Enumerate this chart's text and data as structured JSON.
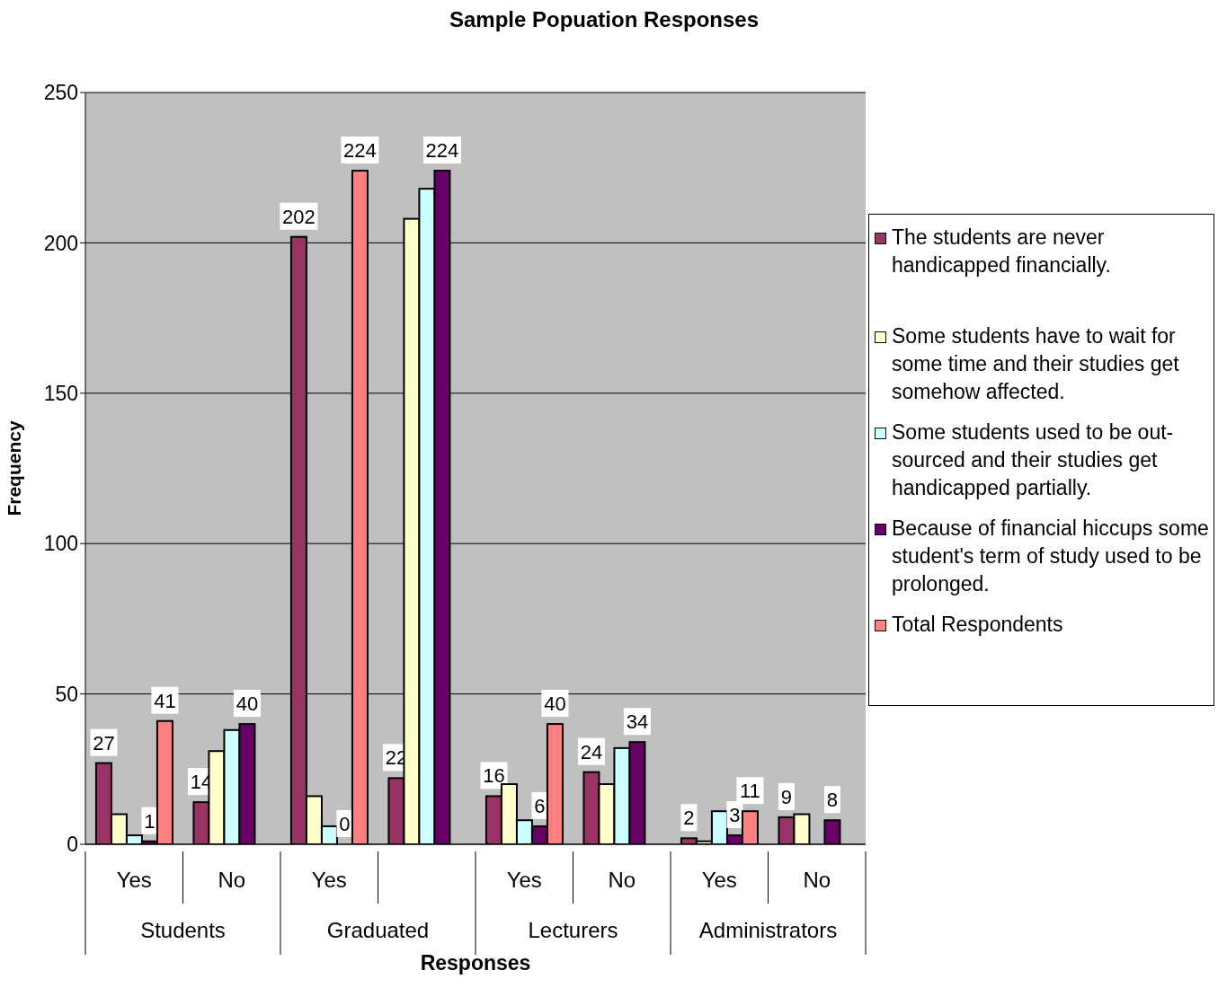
{
  "chart_data": {
    "type": "bar",
    "title": "Sample Popuation Responses",
    "xlabel": "Responses",
    "ylabel": "Frequency",
    "categories": [
      "Yes",
      "No",
      "Yes",
      null,
      "Yes",
      "No",
      "Yes",
      "No"
    ],
    "annotations": [
      "Students",
      "Graduated",
      "Lecturers",
      "Administrators"
    ],
    "series": [
      {
        "name": "The students are never handicapped financially.",
        "color": "#993366",
        "values": [
          27,
          14,
          202,
          22,
          16,
          24,
          2,
          9
        ],
        "value_labels": [
          "27",
          "14",
          "202",
          "22",
          "16",
          "24",
          "2",
          "9"
        ]
      },
      {
        "name": "Some students have to wait for some time and their studies get somehow affected.",
        "color": "#ffffcc",
        "values": [
          10,
          31,
          16,
          208,
          20,
          20,
          1,
          10
        ]
      },
      {
        "name": "Some students used to be out-sourced and their studies get handicapped partially.",
        "color": "#ccffff",
        "values": [
          3,
          38,
          6,
          218,
          8,
          32,
          11,
          null
        ]
      },
      {
        "name": "Because of financial hiccups some student's term of study used to be prolonged.",
        "color": "#660066",
        "values": [
          1,
          40,
          0,
          224,
          6,
          34,
          3,
          8
        ],
        "value_labels": [
          "1",
          "40",
          "0",
          "224",
          "6",
          "34",
          "3",
          "8"
        ]
      },
      {
        "name": "Total Respondents",
        "color": "#ff8080",
        "values": [
          41,
          null,
          224,
          null,
          40,
          null,
          11,
          null
        ],
        "value_labels": [
          "41",
          null,
          "224",
          null,
          "40",
          null,
          "11",
          null
        ]
      }
    ],
    "ylim": [
      0,
      250
    ],
    "yticks": [
      0,
      50,
      100,
      150,
      200,
      250
    ],
    "grid": "y",
    "legend": "right"
  }
}
